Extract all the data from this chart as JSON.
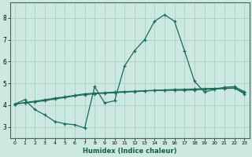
{
  "xlabel": "Humidex (Indice chaleur)",
  "background_color": "#cce8e0",
  "grid_color": "#aacfc8",
  "line_color": "#1a6b5a",
  "xlim": [
    -0.5,
    23.5
  ],
  "ylim": [
    2.5,
    8.7
  ],
  "xticks": [
    0,
    1,
    2,
    3,
    4,
    5,
    6,
    7,
    8,
    9,
    10,
    11,
    12,
    13,
    14,
    15,
    16,
    17,
    18,
    19,
    20,
    21,
    22,
    23
  ],
  "yticks": [
    3,
    4,
    5,
    6,
    7,
    8
  ],
  "line1_x": [
    0,
    1,
    2,
    3,
    4,
    5,
    6,
    7,
    8,
    9,
    10,
    11,
    12,
    13,
    14,
    15,
    16,
    17,
    18,
    19,
    20,
    21,
    22,
    23
  ],
  "line1_y": [
    4.05,
    4.25,
    3.8,
    3.55,
    3.25,
    3.15,
    3.1,
    2.95,
    4.85,
    4.1,
    4.2,
    5.8,
    6.5,
    7.0,
    7.85,
    8.15,
    7.85,
    6.5,
    5.1,
    4.6,
    4.72,
    4.82,
    4.85,
    4.62
  ],
  "line2_x": [
    0,
    1,
    2,
    3,
    4,
    5,
    6,
    7,
    8,
    9,
    10,
    11,
    12,
    13,
    14,
    15,
    16,
    17,
    18,
    19,
    20,
    21,
    22,
    23
  ],
  "line2_y": [
    4.05,
    4.1,
    4.15,
    4.2,
    4.28,
    4.35,
    4.42,
    4.48,
    4.52,
    4.55,
    4.57,
    4.6,
    4.62,
    4.65,
    4.67,
    4.68,
    4.68,
    4.68,
    4.7,
    4.72,
    4.74,
    4.76,
    4.78,
    4.58
  ],
  "line3_x": [
    0,
    1,
    2,
    3,
    4,
    5,
    6,
    7,
    8,
    9,
    10,
    11,
    12,
    13,
    14,
    15,
    16,
    17,
    18,
    19,
    20,
    21,
    22,
    23
  ],
  "line3_y": [
    4.05,
    4.12,
    4.18,
    4.25,
    4.32,
    4.38,
    4.45,
    4.52,
    4.55,
    4.57,
    4.6,
    4.62,
    4.64,
    4.66,
    4.68,
    4.7,
    4.72,
    4.73,
    4.74,
    4.76,
    4.77,
    4.78,
    4.79,
    4.52
  ]
}
